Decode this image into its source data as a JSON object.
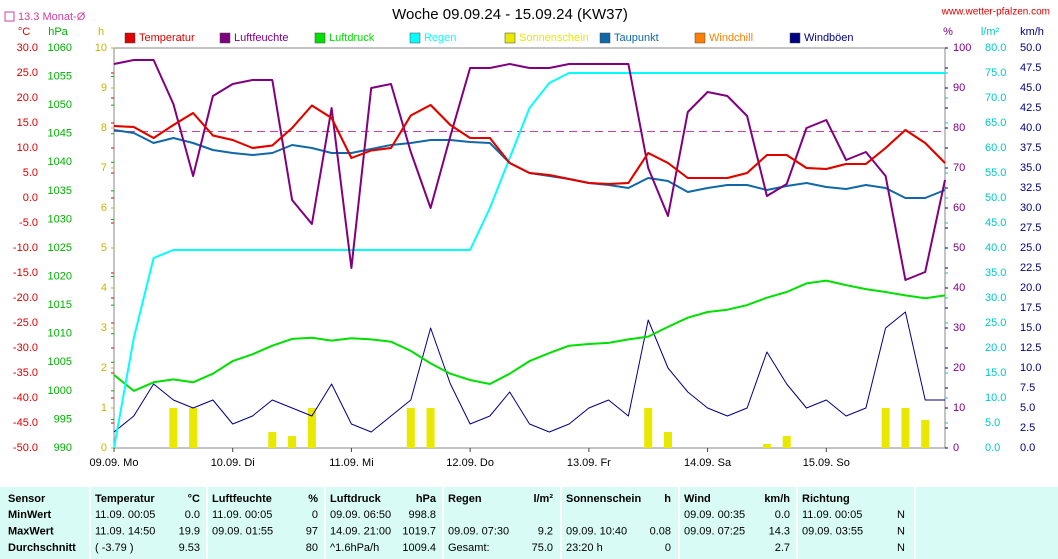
{
  "chart_data": {
    "type": "line",
    "title": "Woche 09.09.24 - 15.09.24 (KW37)",
    "source": "www.wetter-pfalzen.com",
    "monthly_avg": {
      "value": 13.3,
      "label": "13.3 Monat-Ø",
      "color": "#d040a0"
    },
    "x_labels": [
      "09.09. Mo",
      "10.09. Di",
      "11.09. Mi",
      "12.09. Do",
      "13.09. Fr",
      "14.09. Sa",
      "15.09. So"
    ],
    "axes": [
      {
        "unit": "°C",
        "color": "#e00000",
        "lim": [
          -50,
          30
        ],
        "ticks": [
          {
            "value": 30,
            "label": "30.0"
          },
          {
            "value": 25,
            "label": "25.0"
          },
          {
            "value": 20,
            "label": "20.0"
          },
          {
            "value": 15,
            "label": "15.0"
          },
          {
            "value": 10,
            "label": "10.0"
          },
          {
            "value": 5,
            "label": "5.0"
          },
          {
            "value": 0,
            "label": "0.0"
          },
          {
            "value": -5,
            "label": "-5.0"
          },
          {
            "value": -10,
            "label": "-10.0"
          },
          {
            "value": -15,
            "label": "-15.0"
          },
          {
            "value": -20,
            "label": "-20.0"
          },
          {
            "value": -25,
            "label": "-25.0"
          },
          {
            "value": -30,
            "label": "-30.0"
          },
          {
            "value": -35,
            "label": "-35.0"
          },
          {
            "value": -40,
            "label": "-40.0"
          },
          {
            "value": -45,
            "label": "-45.0"
          },
          {
            "value": -50,
            "label": "-50.0"
          }
        ]
      },
      {
        "unit": "hPa",
        "color": "#00b000",
        "lim": [
          990,
          1060
        ],
        "ticks": [
          1060,
          1055,
          1050,
          1045,
          1040,
          1035,
          1030,
          1025,
          1020,
          1015,
          1010,
          1005,
          1000,
          995,
          990
        ]
      },
      {
        "unit": "h",
        "color": "#c8b400",
        "lim": [
          0,
          10
        ],
        "ticks": [
          10,
          9,
          8,
          7,
          6,
          5,
          4,
          3,
          2,
          1,
          0
        ]
      },
      {
        "unit": "%",
        "color": "#800080",
        "lim": [
          0,
          100
        ],
        "ticks": [
          100,
          90,
          80,
          70,
          60,
          50,
          40,
          30,
          20,
          10,
          0
        ]
      },
      {
        "unit": "l/m²",
        "color": "#00c8c8",
        "lim": [
          0,
          80
        ],
        "ticks": [
          {
            "value": 80,
            "label": "80.0"
          },
          {
            "value": 75,
            "label": "75.0"
          },
          {
            "value": 70,
            "label": "70.0"
          },
          {
            "value": 65,
            "label": "65.0"
          },
          {
            "value": 60,
            "label": "60.0"
          },
          {
            "value": 55,
            "label": "55.0"
          },
          {
            "value": 50,
            "label": "50.0"
          },
          {
            "value": 45,
            "label": "45.0"
          },
          {
            "value": 40,
            "label": "40.0"
          },
          {
            "value": 35,
            "label": "35.0"
          },
          {
            "value": 30,
            "label": "30.0"
          },
          {
            "value": 25,
            "label": "25.0"
          },
          {
            "value": 20,
            "label": "20.0"
          },
          {
            "value": 15,
            "label": "15.0"
          },
          {
            "value": 10,
            "label": "10.0"
          },
          {
            "value": 5,
            "label": "5.0"
          },
          {
            "value": 0,
            "label": "0.0"
          }
        ]
      },
      {
        "unit": "km/h",
        "color": "#000080",
        "lim": [
          0,
          50
        ],
        "ticks": [
          {
            "value": 50,
            "label": "50.0"
          },
          47.5,
          {
            "value": 45,
            "label": "45.0"
          },
          42.5,
          {
            "value": 40,
            "label": "40.0"
          },
          37.5,
          {
            "value": 35,
            "label": "35.0"
          },
          32.5,
          {
            "value": 30,
            "label": "30.0"
          },
          27.5,
          {
            "value": 25,
            "label": "25.0"
          },
          22.5,
          {
            "value": 20,
            "label": "20.0"
          },
          17.5,
          {
            "value": 15,
            "label": "15.0"
          },
          12.5,
          {
            "value": 10,
            "label": "10.0"
          },
          7.5,
          {
            "value": 5,
            "label": "5.0"
          },
          2.5,
          {
            "value": 0,
            "label": "0.0"
          }
        ]
      }
    ],
    "series": [
      {
        "name": "Temperatur",
        "color": "#e00000",
        "axis": 0,
        "values": [
          14.4,
          14.2,
          12,
          14.6,
          17,
          12.5,
          11.6,
          10,
          10.5,
          14,
          18.5,
          16,
          8,
          9.5,
          10,
          16.5,
          18.6,
          14.6,
          12,
          12,
          7,
          5,
          4.6,
          3.8,
          3,
          2.8,
          3,
          9,
          7,
          4,
          4,
          4,
          5,
          8.6,
          8.6,
          6,
          5.8,
          6.8,
          6.8,
          10,
          13.6,
          11,
          7
        ]
      },
      {
        "name": "Luftfeuchte",
        "color": "#800080",
        "axis": 3,
        "values": [
          96,
          97,
          97,
          86,
          68,
          88,
          91,
          92,
          92,
          62,
          56,
          85,
          45,
          90,
          91,
          74,
          60,
          78,
          95,
          95,
          96,
          95,
          95,
          96,
          96,
          96,
          96,
          70,
          58,
          84,
          89,
          88,
          83,
          63,
          66,
          80,
          82,
          72,
          74,
          68,
          42,
          44,
          67
        ]
      },
      {
        "name": "Luftdruck",
        "color": "#00e000",
        "axis": 1,
        "values": [
          1002.8,
          1000,
          1001.5,
          1002,
          1001.5,
          1003,
          1005.2,
          1006.4,
          1007.9,
          1009.1,
          1009.3,
          1008.8,
          1009.2,
          1009,
          1008.6,
          1007,
          1004.8,
          1003,
          1001.9,
          1001.2,
          1003,
          1005.2,
          1006.6,
          1007.9,
          1008.2,
          1008.4,
          1009,
          1009.5,
          1011.2,
          1012.8,
          1013.8,
          1014.2,
          1015,
          1016.3,
          1017.3,
          1018.8,
          1019.3,
          1018.5,
          1017.8,
          1017.3,
          1016.7,
          1016.2,
          1016.7
        ]
      },
      {
        "name": "Regen",
        "color": "#00ffff",
        "axis": 4,
        "values": [
          0,
          22,
          38,
          39.6,
          39.6,
          39.6,
          39.6,
          39.6,
          39.6,
          39.6,
          39.6,
          39.6,
          39.6,
          39.6,
          39.6,
          39.6,
          39.6,
          39.6,
          39.6,
          48,
          58,
          68,
          73,
          75,
          75,
          75,
          75,
          75,
          75,
          75,
          75,
          75,
          75,
          75,
          75,
          75,
          75,
          75,
          75,
          75,
          75,
          75,
          75
        ]
      },
      {
        "name": "Sonnenschein",
        "color": "#e8e800",
        "axis": 2,
        "kind": "bar",
        "values": [
          0,
          0,
          0,
          1,
          1,
          0,
          0,
          0,
          0.4,
          0.3,
          1,
          0,
          0,
          0,
          0,
          1,
          1,
          0,
          0,
          0,
          0,
          0,
          0,
          0,
          0,
          0,
          0,
          1,
          0.4,
          0,
          0,
          0,
          0,
          0.1,
          0.3,
          0,
          0,
          0,
          0,
          1,
          1,
          0.7,
          0
        ]
      },
      {
        "name": "Taupunkt",
        "color": "#1068a8",
        "axis": 0,
        "values": [
          13.6,
          13,
          11,
          12,
          11,
          9.6,
          9,
          8.6,
          9,
          10.6,
          10,
          9,
          9,
          9.8,
          10.6,
          11,
          11.6,
          11.6,
          11.2,
          11,
          7,
          5,
          4.4,
          3.8,
          3,
          2.6,
          2,
          4,
          3.4,
          1.2,
          2,
          2.6,
          2.6,
          1.6,
          2.4,
          3,
          2.2,
          1.8,
          2.6,
          2,
          0,
          0,
          1.6
        ]
      },
      {
        "name": "Windchill",
        "color": "#ff8000",
        "axis": 0,
        "values": [
          14.4,
          14.2,
          12,
          14.6,
          17,
          12.5,
          11.6,
          10,
          10.5,
          14,
          18.5,
          16,
          8,
          9.5,
          10,
          16.5,
          18.6,
          14.6,
          12,
          12,
          7,
          5,
          4.6,
          3.8,
          3,
          2.8,
          3,
          9,
          7,
          4,
          4,
          4,
          5,
          8.6,
          8.6,
          6,
          5.8,
          6.8,
          6.8,
          10,
          13.6,
          11,
          7
        ]
      },
      {
        "name": "Windböen",
        "color": "#000080",
        "axis": 5,
        "values": [
          2,
          4,
          8,
          6,
          5,
          6,
          3,
          4,
          6,
          5,
          4,
          8,
          3,
          2,
          4,
          6,
          15,
          8,
          3,
          4,
          7,
          3,
          2,
          3,
          5,
          6,
          4,
          16,
          10,
          7,
          5,
          4,
          5,
          12,
          8,
          5,
          6,
          4,
          5,
          15,
          17,
          6,
          6
        ]
      }
    ]
  },
  "table": {
    "headers": [
      {
        "name": "Sensor"
      },
      {
        "name": "Temperatur",
        "unit": "°C"
      },
      {
        "name": "Luftfeuchte",
        "unit": "%"
      },
      {
        "name": "Luftdruck",
        "unit": "hPa"
      },
      {
        "name": "Regen",
        "unit": "l/m²"
      },
      {
        "name": "Sonnenschein",
        "unit": "h"
      },
      {
        "name": "Wind",
        "unit": "km/h"
      },
      {
        "name": "Richtung"
      }
    ],
    "rows": [
      {
        "label": "MinWert",
        "cells": [
          {
            "time": "11.09. 00:05",
            "value": "0.0"
          },
          {
            "time": "11.09. 00:05",
            "value": "0"
          },
          {
            "time": "09.09. 06:50",
            "value": "998.8"
          },
          null,
          null,
          {
            "time": "09.09. 00:35",
            "value": "0.0"
          },
          {
            "time": "11.09. 00:05",
            "value": "N"
          }
        ]
      },
      {
        "label": "MaxWert",
        "cells": [
          {
            "time": "11.09. 14:50",
            "value": "19.9"
          },
          {
            "time": "09.09. 01:55",
            "value": "97"
          },
          {
            "time": "14.09. 21:00",
            "value": "1019.7"
          },
          {
            "time": "09.09. 07:30",
            "value": "9.2"
          },
          {
            "time": "09.09. 10:40",
            "value": "0.08"
          },
          {
            "time": "09.09. 07:25",
            "value": "14.3"
          },
          {
            "time": "09.09. 03:55",
            "value": "N"
          }
        ]
      },
      {
        "label": "Durchschnitt",
        "cells": [
          {
            "time": "( -3.79 )",
            "value": "9.53"
          },
          {
            "value": "80"
          },
          {
            "time": "^1.6hPa/h",
            "value": "1009.4"
          },
          {
            "time": "Gesamt:",
            "value": "75.0"
          },
          {
            "time": "23:20 h",
            "value": "0"
          },
          {
            "value": "2.7"
          },
          {
            "value": "N"
          }
        ]
      }
    ]
  }
}
